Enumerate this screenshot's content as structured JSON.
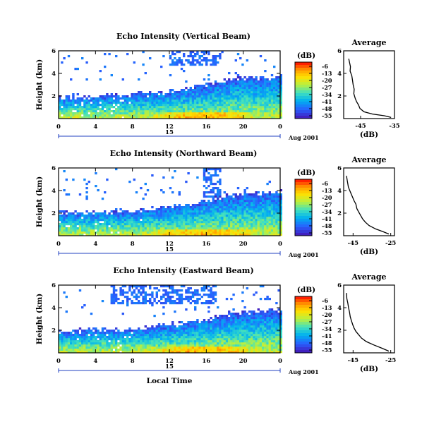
{
  "figure": {
    "colorbar_unit": "(dB)",
    "colorbar_ticks": [
      "-6",
      "-13",
      "-20",
      "-27",
      "-34",
      "-41",
      "-48",
      "-55"
    ],
    "colorbar_colors": [
      "#ff2000",
      "#ff9a00",
      "#ffe000",
      "#b8f040",
      "#40e0c0",
      "#00b0f0",
      "#2860ff",
      "#4020c0"
    ],
    "date_label": "Aug 2001",
    "day_label": "15",
    "xlabel": "Local Time",
    "ylabel": "Height (km)",
    "avg_title": "Average",
    "avg_xlabel": "(dB)"
  },
  "chart_data": [
    {
      "type": "heatmap",
      "title": "Echo Intensity (Vertical Beam)",
      "xlabel": "",
      "ylabel": "Height (km)",
      "xlim": [
        0,
        24
      ],
      "ylim": [
        0,
        6
      ],
      "x_ticks": [
        "0",
        "4",
        "8",
        "12",
        "16",
        "20",
        "0"
      ],
      "y_ticks": [
        "2",
        "4",
        "6"
      ],
      "colorbar": {
        "label": "(dB)",
        "range": [
          -55,
          -6
        ]
      },
      "echo_top_km": [
        [
          0,
          1.8
        ],
        [
          4,
          1.9
        ],
        [
          8,
          2.0
        ],
        [
          12,
          2.3
        ],
        [
          16,
          2.9
        ],
        [
          18,
          3.3
        ],
        [
          20,
          3.5
        ],
        [
          24,
          3.6
        ]
      ],
      "upper_echo": {
        "x": [
          11.8,
          17.4
        ],
        "y": [
          4.6,
          6.0
        ]
      },
      "profile": {
        "title": "Average",
        "xlabel": "(dB)",
        "xlim": [
          -50,
          -35
        ],
        "x_ticks": [
          "-45",
          "-35"
        ],
        "ylim": [
          0,
          6
        ],
        "y_ticks": [
          "2",
          "4",
          "6"
        ],
        "x": [
          -48.5,
          -48.3,
          -48.0,
          -48.1,
          -47.6,
          -47.4,
          -47.2,
          -46.9,
          -47.0,
          -46.6,
          -46.2,
          -45.6,
          -45.2,
          -44.0,
          -41.5,
          -38.0,
          -36.0
        ],
        "y": [
          5.3,
          5.0,
          4.6,
          4.2,
          3.8,
          3.4,
          3.0,
          2.6,
          2.2,
          1.8,
          1.5,
          1.2,
          0.9,
          0.6,
          0.4,
          0.25,
          0.1
        ]
      }
    },
    {
      "type": "heatmap",
      "title": "Echo Intensity (Northward Beam)",
      "xlabel": "",
      "ylabel": "Height (km)",
      "xlim": [
        0,
        24
      ],
      "ylim": [
        0,
        6
      ],
      "x_ticks": [
        "0",
        "4",
        "8",
        "12",
        "16",
        "20",
        "0"
      ],
      "y_ticks": [
        "2",
        "4",
        "6"
      ],
      "colorbar": {
        "label": "(dB)",
        "range": [
          -55,
          -6
        ]
      },
      "echo_top_km": [
        [
          0,
          1.9
        ],
        [
          4,
          2.0
        ],
        [
          8,
          2.1
        ],
        [
          12,
          2.5
        ],
        [
          16,
          3.0
        ],
        [
          18,
          3.5
        ],
        [
          20,
          3.6
        ],
        [
          24,
          3.8
        ]
      ],
      "upper_echo": {
        "x": [
          15.5,
          17.5
        ],
        "y": [
          3.3,
          6.0
        ]
      },
      "profile": {
        "title": "Average",
        "xlabel": "(dB)",
        "xlim": [
          -50,
          -23
        ],
        "x_ticks": [
          "-45",
          "-25"
        ],
        "ylim": [
          0,
          6
        ],
        "y_ticks": [
          "2",
          "4",
          "6"
        ],
        "x": [
          -48.5,
          -48.0,
          -47.5,
          -46.5,
          -45.5,
          -44.5,
          -43.5,
          -43.0,
          -42.0,
          -41.0,
          -40.0,
          -38.5,
          -36.5,
          -33.0,
          -29.0,
          -26.0
        ],
        "y": [
          5.3,
          4.8,
          4.3,
          3.9,
          3.5,
          3.1,
          2.8,
          2.4,
          2.1,
          1.8,
          1.5,
          1.2,
          0.9,
          0.6,
          0.35,
          0.15
        ]
      }
    },
    {
      "type": "heatmap",
      "title": "Echo Intensity (Eastward Beam)",
      "xlabel": "Local Time",
      "ylabel": "Height (km)",
      "xlim": [
        0,
        24
      ],
      "ylim": [
        0,
        6
      ],
      "x_ticks": [
        "0",
        "4",
        "8",
        "12",
        "16",
        "20",
        "0"
      ],
      "y_ticks": [
        "2",
        "4",
        "6"
      ],
      "colorbar": {
        "label": "(dB)",
        "range": [
          -55,
          -6
        ]
      },
      "echo_top_km": [
        [
          0,
          1.8
        ],
        [
          4,
          2.0
        ],
        [
          8,
          2.0
        ],
        [
          12,
          2.4
        ],
        [
          16,
          2.9
        ],
        [
          18,
          3.3
        ],
        [
          20,
          3.5
        ],
        [
          24,
          3.7
        ]
      ],
      "upper_echo": {
        "x": [
          5.5,
          17.0
        ],
        "y": [
          4.2,
          6.0
        ]
      },
      "profile": {
        "title": "Average",
        "xlabel": "(dB)",
        "xlim": [
          -50,
          -23
        ],
        "x_ticks": [
          "-45",
          "-25"
        ],
        "ylim": [
          0,
          6
        ],
        "y_ticks": [
          "2",
          "4",
          "6"
        ],
        "x": [
          -48.5,
          -48.3,
          -47.8,
          -47.4,
          -46.9,
          -46.5,
          -46.0,
          -45.2,
          -44.5,
          -43.5,
          -42.0,
          -40.5,
          -38.0,
          -34.0,
          -29.5,
          -26.0
        ],
        "y": [
          5.3,
          4.8,
          4.4,
          4.0,
          3.6,
          3.2,
          2.9,
          2.5,
          2.2,
          1.9,
          1.6,
          1.3,
          1.0,
          0.7,
          0.4,
          0.15
        ]
      }
    }
  ]
}
